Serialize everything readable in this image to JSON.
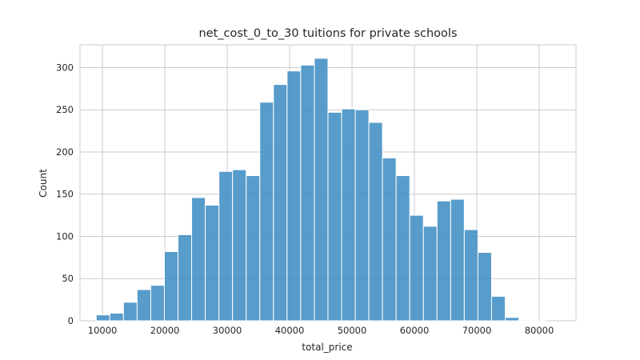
{
  "chart_data": {
    "type": "bar",
    "title": "net_cost_0_to_30 tuitions for private schools",
    "xlabel": "total_price",
    "ylabel": "Count",
    "xlim": [
      6400,
      85900
    ],
    "ylim": [
      0,
      327
    ],
    "grid": true,
    "bar_color": "#3a8bc2",
    "grid_color": "#cccccc",
    "xticks": [
      10000,
      20000,
      30000,
      40000,
      50000,
      60000,
      70000,
      80000
    ],
    "yticks": [
      0,
      50,
      100,
      150,
      200,
      250,
      300
    ],
    "bins": {
      "start": 9000,
      "width": 2185,
      "counts": [
        7,
        9,
        22,
        37,
        42,
        82,
        102,
        146,
        137,
        177,
        179,
        172,
        259,
        280,
        296,
        303,
        311,
        247,
        251,
        250,
        235,
        193,
        172,
        125,
        112,
        142,
        144,
        108,
        81,
        29,
        4,
        1,
        1
      ]
    }
  }
}
